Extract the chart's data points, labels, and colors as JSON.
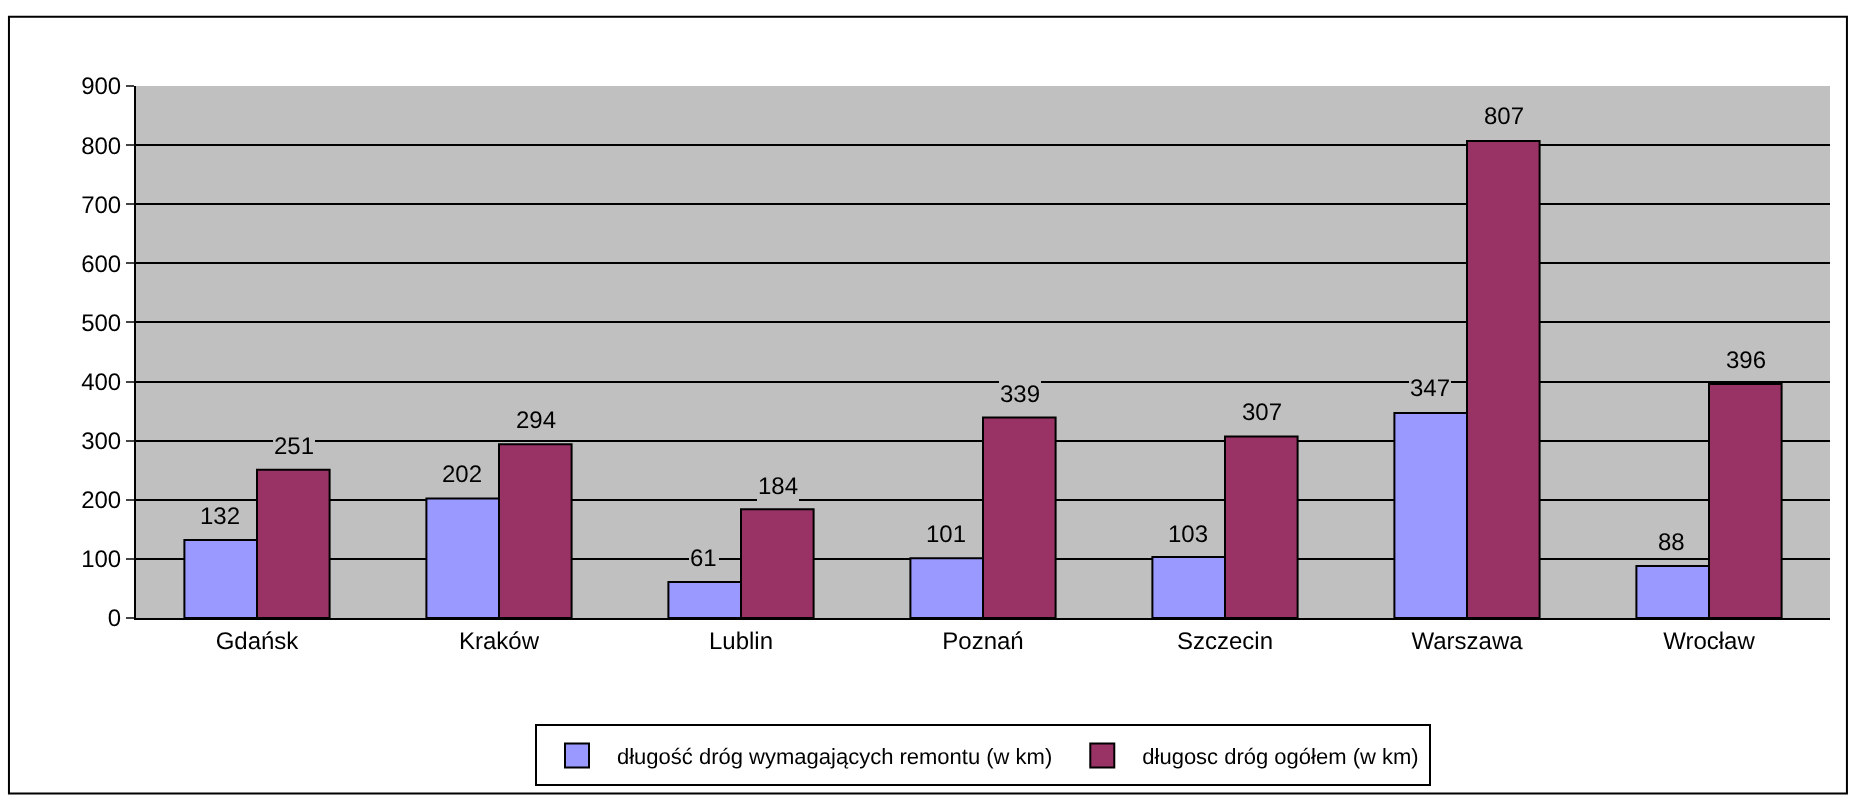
{
  "chart_data": {
    "type": "bar",
    "categories": [
      "Gdańsk",
      "Kraków",
      "Lublin",
      "Poznań",
      "Szczecin",
      "Warszawa",
      "Wrocław"
    ],
    "series": [
      {
        "name": "długość dróg wymagających remontu (w km)",
        "color": "#9999ff",
        "values": [
          132,
          202,
          61,
          101,
          103,
          347,
          88
        ]
      },
      {
        "name": "długosc dróg ogółem (w km)",
        "color": "#993366",
        "values": [
          251,
          294,
          184,
          339,
          307,
          807,
          396
        ]
      }
    ],
    "ylim": [
      0,
      900
    ],
    "yticks": [
      0,
      100,
      200,
      300,
      400,
      500,
      600,
      700,
      800,
      900
    ],
    "grid": "y",
    "legend": "bottom",
    "data_labels": true
  }
}
